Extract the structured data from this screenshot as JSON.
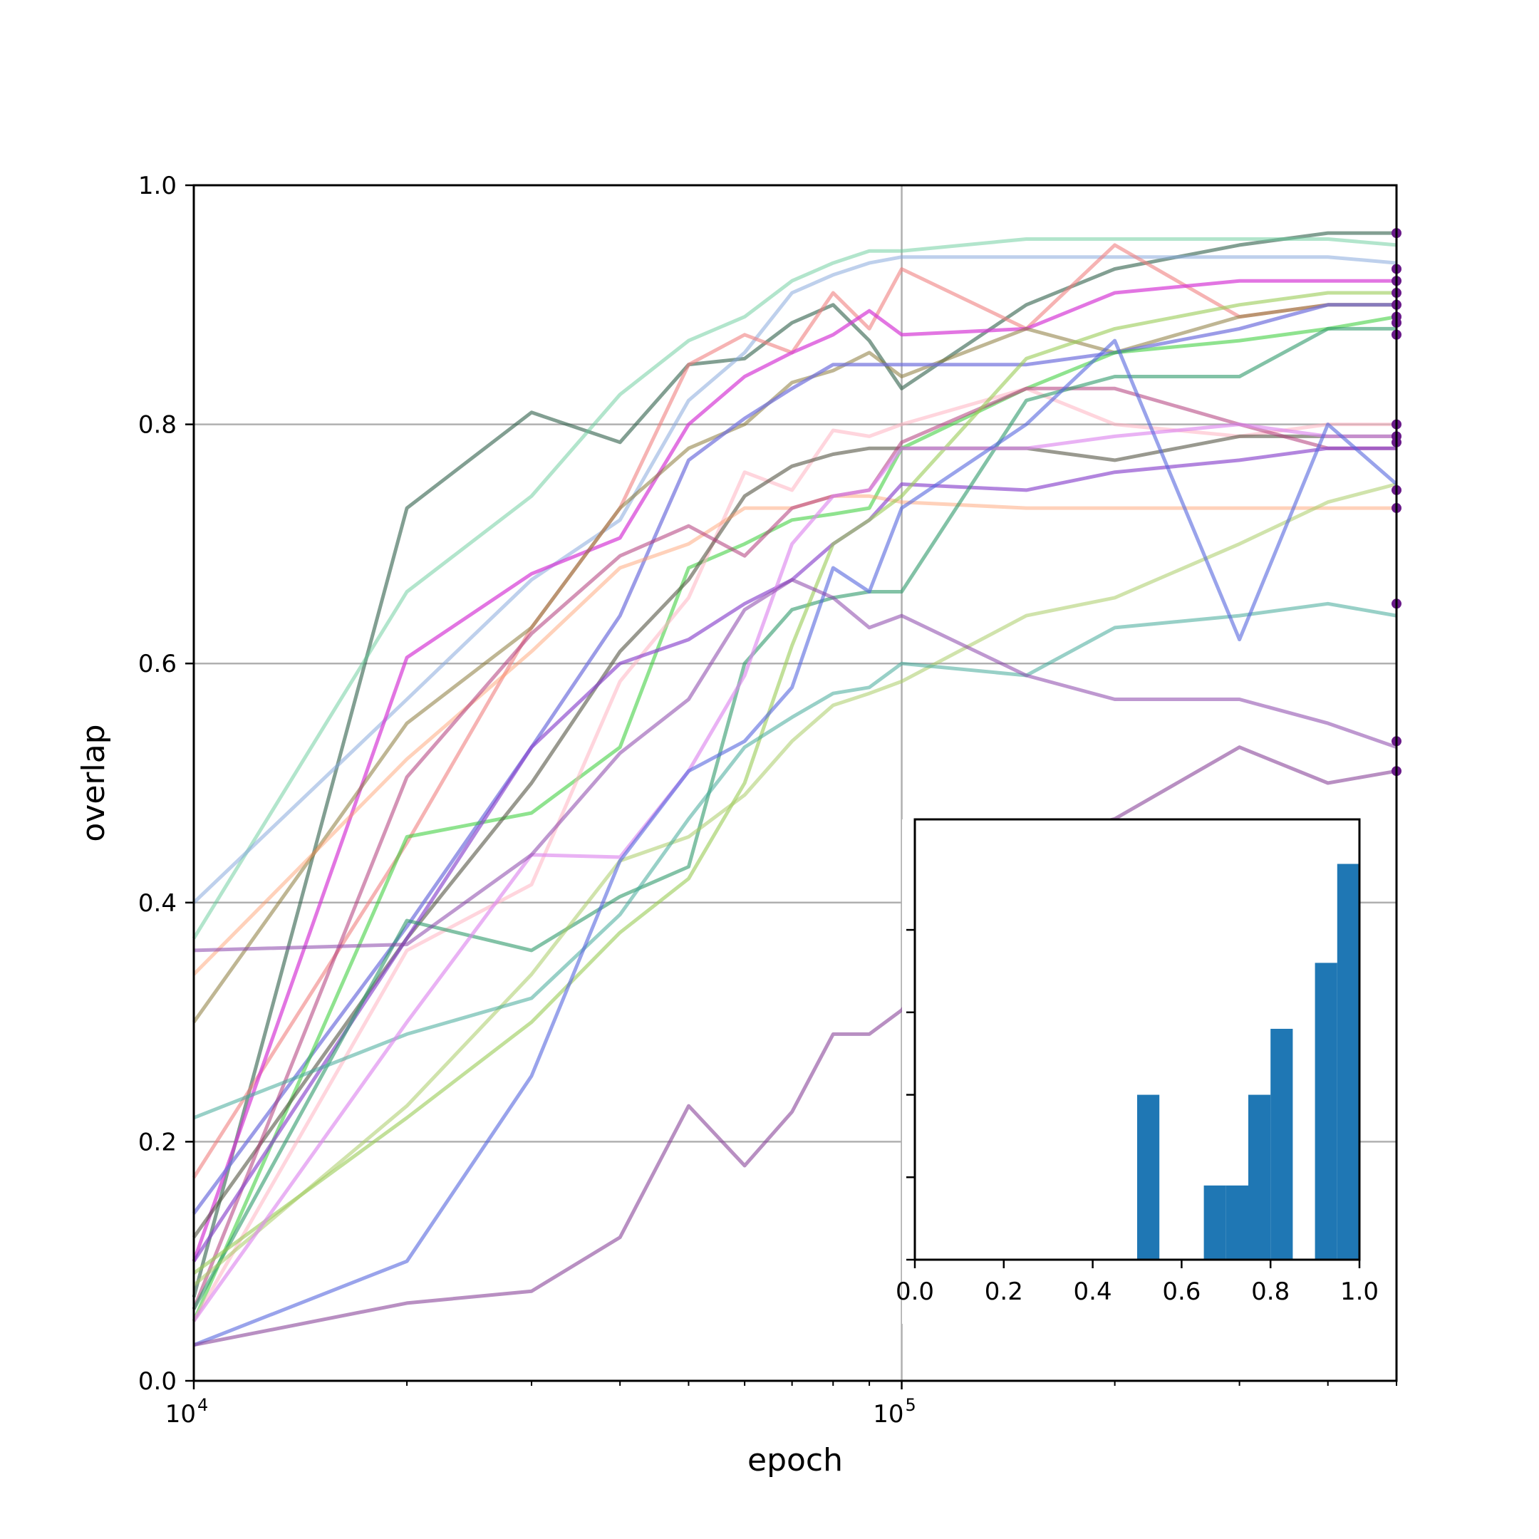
{
  "chart_data": [
    {
      "type": "line",
      "xlabel": "epoch",
      "ylabel": "overlap",
      "xscale": "log",
      "xlim": [
        10000,
        500000
      ],
      "ylim": [
        0,
        1
      ],
      "x_ticks": [
        {
          "value": 10000,
          "base": "10",
          "exp": "4"
        },
        {
          "value": 100000,
          "base": "10",
          "exp": "5"
        }
      ],
      "y_ticks": [
        "0.0",
        "0.2",
        "0.4",
        "0.6",
        "0.8",
        "1.0"
      ],
      "grid": true,
      "x": [
        10000,
        20000,
        30000,
        40000,
        50000,
        60000,
        70000,
        80000,
        90000,
        100000,
        150000,
        200000,
        300000,
        400000,
        500000
      ],
      "series": [
        {
          "color": "#2f5f4a",
          "opacity": 0.6,
          "values": [
            0.07,
            0.73,
            0.81,
            0.785,
            0.85,
            0.855,
            0.885,
            0.9,
            0.87,
            0.83,
            0.9,
            0.93,
            0.95,
            0.96,
            0.96
          ]
        },
        {
          "color": "#66cc99",
          "opacity": 0.5,
          "values": [
            0.37,
            0.66,
            0.74,
            0.825,
            0.87,
            0.89,
            0.92,
            0.935,
            0.945,
            0.945,
            0.955,
            0.955,
            0.955,
            0.955,
            0.95
          ]
        },
        {
          "color": "#88aadd",
          "opacity": 0.55,
          "values": [
            0.4,
            0.57,
            0.67,
            0.72,
            0.82,
            0.86,
            0.91,
            0.925,
            0.935,
            0.94,
            0.94,
            0.94,
            0.94,
            0.94,
            0.935
          ]
        },
        {
          "color": "#f08080",
          "opacity": 0.6,
          "values": [
            0.17,
            0.45,
            0.63,
            0.73,
            0.85,
            0.875,
            0.86,
            0.91,
            0.88,
            0.93,
            0.88,
            0.95,
            0.89,
            0.9,
            0.9
          ]
        },
        {
          "color": "#d63ad6",
          "opacity": 0.7,
          "values": [
            0.1,
            0.605,
            0.675,
            0.705,
            0.8,
            0.84,
            0.86,
            0.875,
            0.895,
            0.875,
            0.88,
            0.91,
            0.92,
            0.92,
            0.92
          ]
        },
        {
          "color": "#8a7a3a",
          "opacity": 0.55,
          "values": [
            0.3,
            0.55,
            0.63,
            0.73,
            0.78,
            0.8,
            0.835,
            0.845,
            0.86,
            0.84,
            0.88,
            0.86,
            0.89,
            0.9,
            0.9
          ]
        },
        {
          "color": "#7070dd",
          "opacity": 0.7,
          "values": [
            0.14,
            0.38,
            0.53,
            0.64,
            0.77,
            0.805,
            0.83,
            0.85,
            0.85,
            0.85,
            0.85,
            0.86,
            0.88,
            0.9,
            0.9
          ]
        },
        {
          "color": "#33cc33",
          "opacity": 0.55,
          "values": [
            0.05,
            0.455,
            0.475,
            0.53,
            0.68,
            0.7,
            0.72,
            0.725,
            0.73,
            0.78,
            0.83,
            0.86,
            0.87,
            0.88,
            0.89
          ]
        },
        {
          "color": "#ffb3c1",
          "opacity": 0.55,
          "values": [
            0.05,
            0.36,
            0.415,
            0.585,
            0.655,
            0.76,
            0.745,
            0.795,
            0.79,
            0.8,
            0.83,
            0.8,
            0.79,
            0.8,
            0.8
          ]
        },
        {
          "color": "#555544",
          "opacity": 0.6,
          "values": [
            0.12,
            0.37,
            0.5,
            0.61,
            0.67,
            0.74,
            0.765,
            0.775,
            0.78,
            0.78,
            0.78,
            0.77,
            0.79,
            0.79,
            0.79
          ]
        },
        {
          "color": "#ff9966",
          "opacity": 0.45,
          "values": [
            0.34,
            0.52,
            0.61,
            0.68,
            0.7,
            0.73,
            0.73,
            0.74,
            0.74,
            0.735,
            0.73,
            0.73,
            0.73,
            0.73,
            0.73
          ]
        },
        {
          "color": "#b03a7a",
          "opacity": 0.55,
          "values": [
            0.06,
            0.505,
            0.625,
            0.69,
            0.715,
            0.69,
            0.73,
            0.74,
            0.745,
            0.785,
            0.83,
            0.83,
            0.8,
            0.78,
            0.78
          ]
        },
        {
          "color": "#8844cc",
          "opacity": 0.65,
          "values": [
            0.1,
            0.37,
            0.53,
            0.6,
            0.62,
            0.65,
            0.67,
            0.7,
            0.72,
            0.75,
            0.745,
            0.76,
            0.77,
            0.78,
            0.78
          ]
        },
        {
          "color": "#2e9a6a",
          "opacity": 0.6,
          "values": [
            0.06,
            0.385,
            0.36,
            0.405,
            0.43,
            0.6,
            0.645,
            0.655,
            0.66,
            0.66,
            0.82,
            0.84,
            0.84,
            0.88,
            0.88
          ]
        },
        {
          "color": "#99cc55",
          "opacity": 0.6,
          "values": [
            0.09,
            0.22,
            0.3,
            0.375,
            0.42,
            0.5,
            0.615,
            0.7,
            0.72,
            0.74,
            0.855,
            0.88,
            0.9,
            0.91,
            0.91
          ]
        },
        {
          "color": "#aacc66",
          "opacity": 0.55,
          "values": [
            0.08,
            0.23,
            0.34,
            0.435,
            0.455,
            0.49,
            0.535,
            0.565,
            0.575,
            0.585,
            0.64,
            0.655,
            0.7,
            0.735,
            0.75
          ]
        },
        {
          "color": "#44aa99",
          "opacity": 0.55,
          "values": [
            0.22,
            0.29,
            0.32,
            0.39,
            0.47,
            0.53,
            0.555,
            0.575,
            0.58,
            0.6,
            0.59,
            0.63,
            0.64,
            0.65,
            0.64
          ]
        },
        {
          "color": "#dd88ee",
          "opacity": 0.65,
          "values": [
            0.05,
            0.3,
            0.44,
            0.438,
            0.51,
            0.59,
            0.7,
            0.74,
            0.745,
            0.78,
            0.78,
            0.79,
            0.8,
            0.79,
            0.79
          ]
        },
        {
          "color": "#5566dd",
          "opacity": 0.6,
          "values": [
            0.03,
            0.1,
            0.255,
            0.435,
            0.51,
            0.535,
            0.58,
            0.68,
            0.66,
            0.73,
            0.8,
            0.87,
            0.62,
            0.8,
            0.75
          ]
        },
        {
          "color": "#8844aa",
          "opacity": 0.55,
          "values": [
            0.36,
            0.365,
            0.44,
            0.525,
            0.57,
            0.645,
            0.67,
            0.655,
            0.63,
            0.64,
            0.59,
            0.57,
            0.57,
            0.55,
            0.53
          ]
        },
        {
          "color": "#884499",
          "opacity": 0.6,
          "values": [
            0.03,
            0.065,
            0.075,
            0.12,
            0.23,
            0.18,
            0.225,
            0.29,
            0.29,
            0.31,
            0.45,
            0.47,
            0.53,
            0.5,
            0.51
          ]
        }
      ],
      "endpoint_color": "#6a1a8a",
      "endpoints": [
        0.96,
        0.93,
        0.92,
        0.91,
        0.9,
        0.89,
        0.885,
        0.875,
        0.8,
        0.79,
        0.785,
        0.745,
        0.73,
        0.65,
        0.535,
        0.51
      ]
    },
    {
      "type": "bar",
      "subtype": "histogram",
      "color": "#1f77b4",
      "xlim": [
        0,
        1
      ],
      "x_ticks": [
        "0.0",
        "0.2",
        "0.4",
        "0.6",
        "0.8",
        "1.0"
      ],
      "bins": [
        {
          "start": 0.5,
          "end": 0.55,
          "count": 1
        },
        {
          "start": 0.65,
          "end": 0.7,
          "count": 0.45
        },
        {
          "start": 0.7,
          "end": 0.75,
          "count": 0.45
        },
        {
          "start": 0.75,
          "end": 0.8,
          "count": 1
        },
        {
          "start": 0.8,
          "end": 0.85,
          "count": 1.4
        },
        {
          "start": 0.85,
          "end": 0.9,
          "count": 0.0
        },
        {
          "start": 0.9,
          "end": 0.95,
          "count": 1.8
        },
        {
          "start": 0.95,
          "end": 1.0,
          "count": 2.4
        }
      ],
      "ylim": [
        0,
        2.67
      ]
    }
  ]
}
